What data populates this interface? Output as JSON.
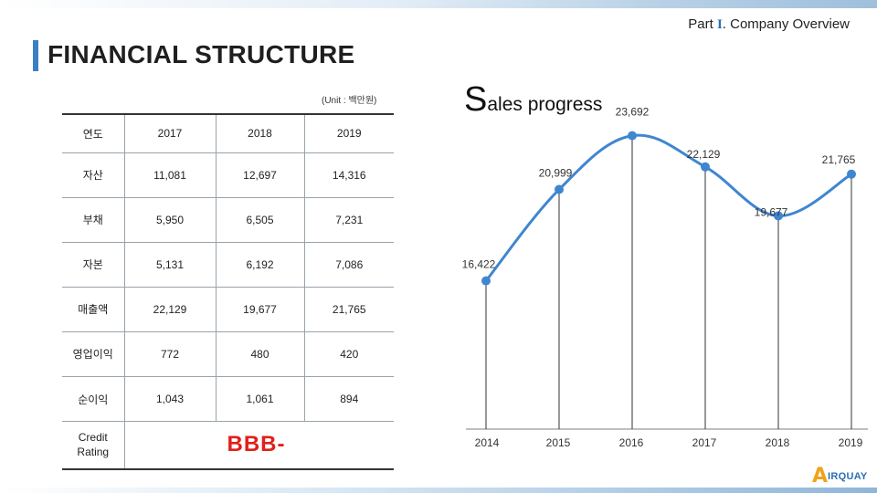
{
  "header": {
    "part_prefix": "Part ",
    "part_roman": "I",
    "part_suffix": ". Company Overview",
    "title": "FINANCIAL STRUCTURE"
  },
  "table": {
    "unit": "(Unit : 백만원)",
    "header": [
      "연도",
      "2017",
      "2018",
      "2019"
    ],
    "rows": [
      [
        "자산",
        "11,081",
        "12,697",
        "14,316"
      ],
      [
        "부채",
        "5,950",
        "6,505",
        "7,231"
      ],
      [
        "자본",
        "5,131",
        "6,192",
        "7,086"
      ],
      [
        "매출액",
        "22,129",
        "19,677",
        "21,765"
      ],
      [
        "영업이익",
        "772",
        "480",
        "420"
      ],
      [
        "순이익",
        "1,043",
        "1,061",
        "894"
      ]
    ],
    "credit_label": "Credit\nRating",
    "credit_rating": "BBB-"
  },
  "chart_title": {
    "initial": "S",
    "rest": "ales progress"
  },
  "chart_data": {
    "type": "line",
    "title": "Sales progress",
    "categories": [
      "2014",
      "2015",
      "2016",
      "2017",
      "2018",
      "2019"
    ],
    "values": [
      16422,
      20999,
      23692,
      22129,
      19677,
      21765
    ],
    "labels": [
      "16,422",
      "20,999",
      "23,692",
      "22,129",
      "19,677",
      "21,765"
    ],
    "ylim": [
      9000,
      25000
    ],
    "grid": false,
    "line_color": "#3f86d0"
  },
  "logo": {
    "mark": "A",
    "text": "IRQUAY"
  }
}
